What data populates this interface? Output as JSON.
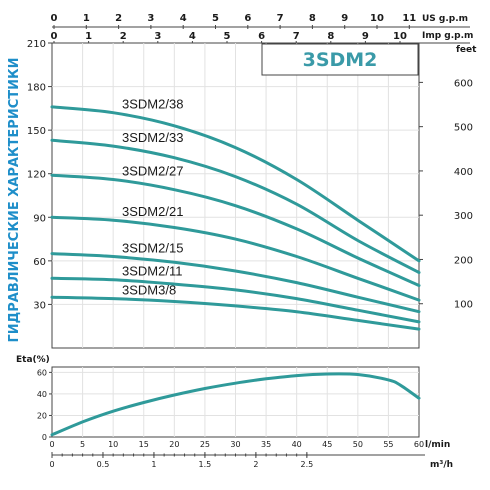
{
  "colors": {
    "curve": "#2f9a9a",
    "frame": "#444444",
    "grid": "#e2e2e2",
    "title": "#1e8ec9",
    "model": "#3a9aa8"
  },
  "model_title": "3SDM2",
  "vertical_title": "ГИДРАВЛИЧЕСКИЕ ХАРАКТЕРИСТИКИ",
  "units": {
    "us_gpm": "US g.p.m",
    "imp_gpm": "Imp g.p.m",
    "feet": "feet",
    "eta": "Eta(%)",
    "l_min": "l/min",
    "m3h": "m³/h"
  },
  "chart_data": [
    {
      "type": "line",
      "name": "head",
      "xlim": [
        0,
        60
      ],
      "ylim": [
        0,
        210
      ],
      "y_ticks": [
        30,
        60,
        90,
        120,
        150,
        180,
        210
      ],
      "y_right_ticks": [
        100,
        200,
        300,
        400,
        500,
        600
      ],
      "us_gpm_ticks": [
        0,
        1,
        2,
        3,
        4,
        5,
        6,
        7,
        8,
        9,
        10,
        11
      ],
      "imp_gpm_ticks": [
        0,
        1,
        2,
        3,
        4,
        5,
        6,
        7,
        8,
        9,
        10
      ],
      "series": [
        {
          "name": "3SDM2/38",
          "x": [
            0,
            10,
            20,
            30,
            40,
            50,
            60
          ],
          "y": [
            166,
            162,
            153,
            138,
            116,
            88,
            60
          ]
        },
        {
          "name": "3SDM2/33",
          "x": [
            0,
            10,
            20,
            30,
            40,
            50,
            60
          ],
          "y": [
            143,
            139,
            131,
            118,
            99,
            74,
            52
          ]
        },
        {
          "name": "3SDM2/27",
          "x": [
            0,
            10,
            20,
            30,
            40,
            50,
            60
          ],
          "y": [
            119,
            116,
            109,
            98,
            82,
            62,
            43
          ]
        },
        {
          "name": "3SDM2/21",
          "x": [
            0,
            10,
            20,
            30,
            40,
            50,
            60
          ],
          "y": [
            90,
            88,
            83,
            75,
            63,
            48,
            33
          ]
        },
        {
          "name": "3SDM2/15",
          "x": [
            0,
            10,
            20,
            30,
            40,
            50,
            60
          ],
          "y": [
            65,
            63,
            59,
            53,
            45,
            35,
            25
          ]
        },
        {
          "name": "3SDM2/11",
          "x": [
            0,
            10,
            20,
            30,
            40,
            50,
            60
          ],
          "y": [
            48,
            47,
            44,
            40,
            34,
            26,
            18
          ]
        },
        {
          "name": "3SDM3/8",
          "x": [
            0,
            10,
            20,
            30,
            40,
            50,
            60
          ],
          "y": [
            35,
            34,
            32,
            29,
            25,
            19,
            13
          ]
        }
      ]
    },
    {
      "type": "line",
      "name": "efficiency",
      "xlim": [
        0,
        60
      ],
      "ylim": [
        0,
        65
      ],
      "y_ticks": [
        0,
        20,
        40,
        60
      ],
      "x_ticks": [
        0,
        5,
        10,
        15,
        20,
        25,
        30,
        35,
        40,
        45,
        50,
        55,
        60
      ],
      "m3h_ticks": [
        "0",
        "0.5",
        "1",
        "1.5",
        "2",
        "2.5"
      ],
      "series": [
        {
          "x": [
            0,
            5,
            10,
            15,
            20,
            25,
            30,
            35,
            40,
            45,
            50,
            55,
            57,
            60
          ],
          "y": [
            2,
            14,
            24,
            32,
            39,
            45,
            50,
            54,
            57,
            58.5,
            58,
            53,
            48,
            36
          ]
        }
      ]
    }
  ]
}
